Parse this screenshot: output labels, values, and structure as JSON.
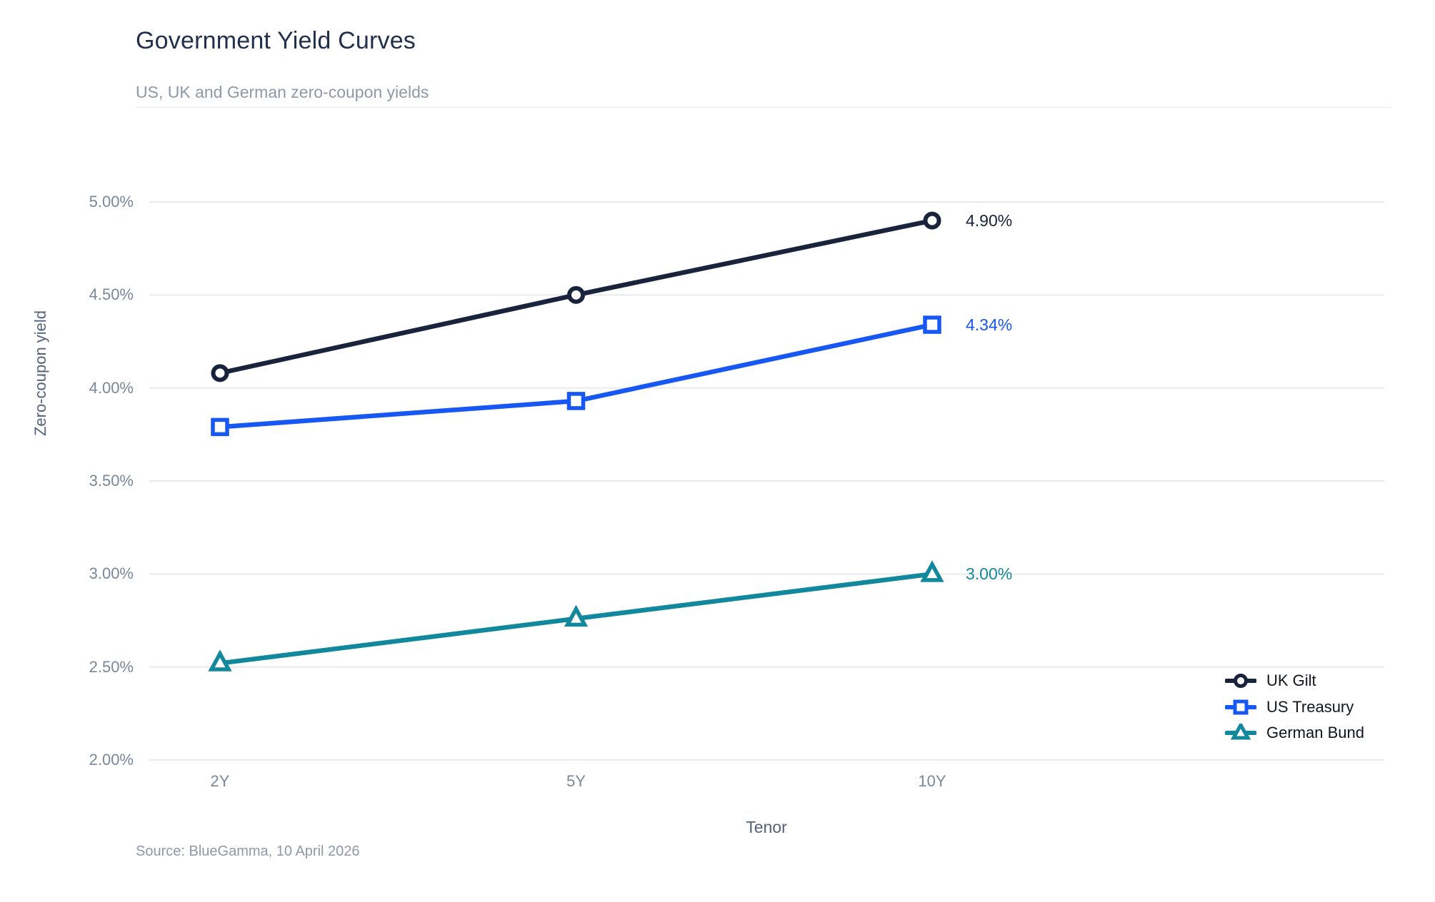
{
  "header": {
    "title": "Government Yield Curves",
    "subtitle": "US, UK and German zero-coupon yields"
  },
  "footer": {
    "source": "Source: BlueGamma, 10 April 2026"
  },
  "colors": {
    "grid": "#e8eaee",
    "tick_label": "#7a879b",
    "axis_title": "#55617a",
    "title": "#22304d",
    "subtitle": "#8e98a9",
    "legend_text": "#0f1621",
    "background": "#ffffff"
  },
  "chart_data": {
    "type": "line",
    "title": "Government Yield Curves",
    "subtitle": "US, UK and German zero-coupon yields",
    "xlabel": "Tenor",
    "ylabel": "Zero-coupon yield",
    "categories": [
      "2Y",
      "5Y",
      "10Y"
    ],
    "ylim": [
      2.0,
      5.0
    ],
    "ytick_step": 0.5,
    "ytick_labels": [
      "2.00%",
      "2.50%",
      "3.00%",
      "3.50%",
      "4.00%",
      "4.50%",
      "5.00%"
    ],
    "grid": true,
    "legend_position": "bottom-right",
    "series": [
      {
        "name": "UK Gilt",
        "marker": "circle",
        "color": "#19233c",
        "values": [
          4.08,
          4.5,
          4.9
        ],
        "end_label": "4.90%"
      },
      {
        "name": "US Treasury",
        "marker": "square",
        "color": "#1757f2",
        "values": [
          3.79,
          3.93,
          4.34
        ],
        "end_label": "4.34%"
      },
      {
        "name": "German Bund",
        "marker": "triangle",
        "color": "#12889d",
        "values": [
          2.52,
          2.76,
          3.0
        ],
        "end_label": "3.00%"
      }
    ],
    "source": "Source: BlueGamma, 10 April 2026"
  }
}
